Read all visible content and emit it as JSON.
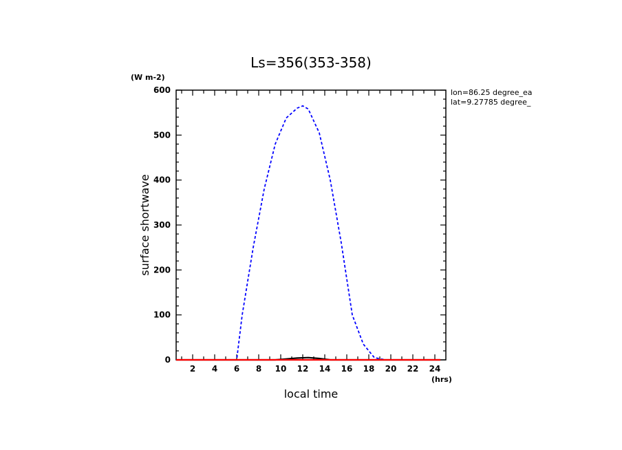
{
  "chart_data": {
    "type": "line",
    "title": "Ls=356(353-358)",
    "xlabel": "local time",
    "ylabel": "surface shortwave",
    "x_unit": "(hrs)",
    "y_unit": "(W m-2)",
    "xlim": [
      0.5,
      25
    ],
    "ylim": [
      0,
      600
    ],
    "xticks": [
      2,
      4,
      6,
      8,
      10,
      12,
      14,
      16,
      18,
      20,
      22,
      24
    ],
    "yticks": [
      0,
      100,
      200,
      300,
      400,
      500,
      600
    ],
    "annotations": [
      "lon=86.25 degree_ea",
      "lat=9.27785 degree_"
    ],
    "grid": false,
    "series": [
      {
        "color": "#0000ff",
        "style": "dashed",
        "x": [
          0.5,
          1.5,
          2.5,
          3.5,
          4.5,
          5.5,
          6.0,
          6.5,
          7.5,
          8.5,
          9.5,
          10.5,
          11.5,
          12.0,
          12.5,
          13.5,
          14.5,
          15.5,
          16.5,
          17.5,
          18.5,
          19.5,
          20.5,
          21.5,
          22.5,
          23.5,
          24.5
        ],
        "y": [
          0,
          0,
          0,
          0,
          0,
          0,
          0,
          100,
          250,
          380,
          480,
          538,
          560,
          565,
          558,
          505,
          400,
          260,
          100,
          35,
          5,
          0,
          0,
          0,
          0,
          0,
          0
        ]
      },
      {
        "color": "#000000",
        "style": "solid",
        "x": [
          0.5,
          9.5,
          10.5,
          11.5,
          12.5,
          13.5,
          14.5,
          24.5
        ],
        "y": [
          0,
          0,
          2,
          4,
          5,
          3,
          0,
          0
        ]
      },
      {
        "color": "#ff0000",
        "style": "solid",
        "x": [
          0.5,
          24.5
        ],
        "y": [
          0,
          0
        ]
      }
    ]
  }
}
